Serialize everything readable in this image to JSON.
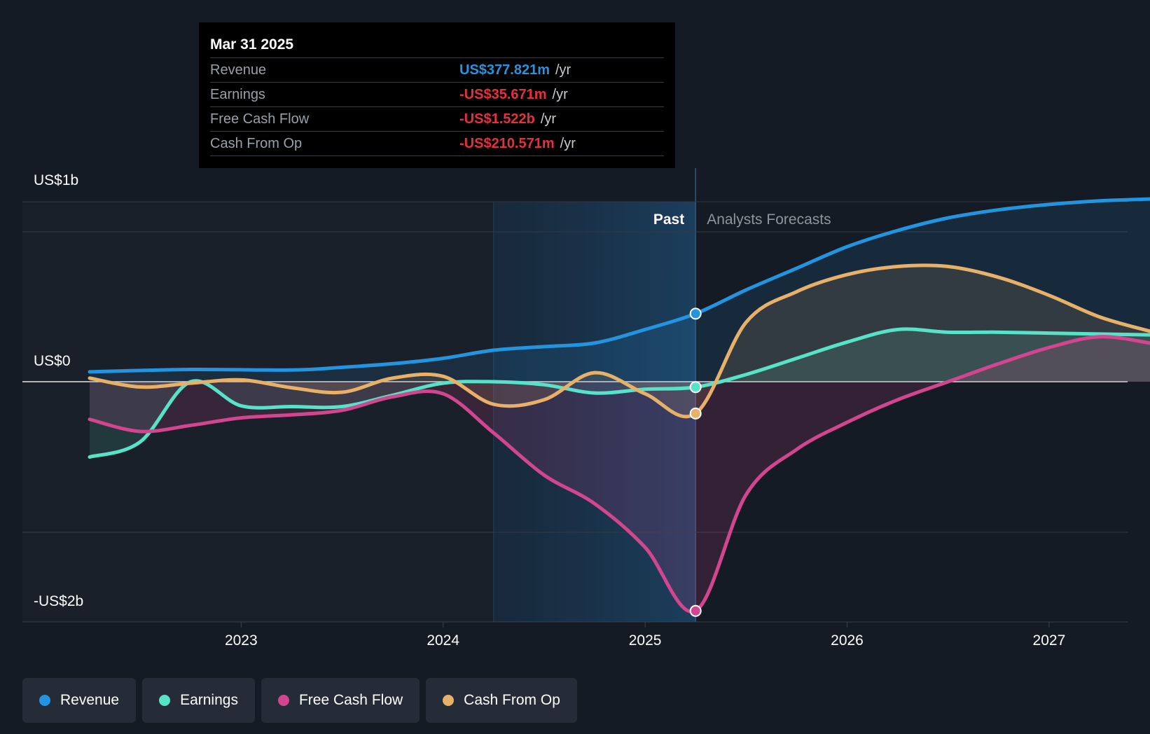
{
  "chart_data": {
    "type": "line",
    "y_axis": {
      "min": -2000,
      "max": 1000,
      "unit": "US$m",
      "tick_labels": [
        {
          "label": "US$1b",
          "value": 1000
        },
        {
          "label": "US$0",
          "value": 0
        },
        {
          "label": "-US$2b",
          "value": -2000
        }
      ]
    },
    "x_axis": {
      "min": 2022.25,
      "max": 2027.5,
      "tick_labels": [
        "2023",
        "2024",
        "2025",
        "2026",
        "2027"
      ],
      "tick_values": [
        2023,
        2024,
        2025,
        2026,
        2027
      ]
    },
    "past_label": "Past",
    "forecast_label": "Analysts Forecasts",
    "divider_x": 2025.25,
    "highlight_range": [
      2024.25,
      2025.25
    ],
    "series": [
      {
        "name": "Revenue",
        "color": "#2394df",
        "x": [
          2022.25,
          2022.75,
          2023.25,
          2023.5,
          2023.75,
          2024.0,
          2024.25,
          2024.5,
          2024.75,
          2025.0,
          2025.25,
          2025.5,
          2025.75,
          2026.0,
          2026.25,
          2026.5,
          2026.75,
          2027.0,
          2027.25,
          2027.5
        ],
        "y": [
          55,
          68,
          65,
          80,
          100,
          130,
          175,
          195,
          215,
          290,
          378,
          510,
          630,
          750,
          840,
          910,
          955,
          985,
          1005,
          1015
        ]
      },
      {
        "name": "Earnings",
        "color": "#58e2c8",
        "x": [
          2022.25,
          2022.5,
          2022.75,
          2023.0,
          2023.25,
          2023.5,
          2023.75,
          2024.0,
          2024.25,
          2024.5,
          2024.75,
          2025.0,
          2025.25,
          2025.5,
          2025.75,
          2026.0,
          2026.25,
          2026.5,
          2026.75,
          2027.0,
          2027.25,
          2027.5
        ],
        "y": [
          -500,
          -400,
          0,
          -160,
          -165,
          -165,
          -90,
          -10,
          0,
          -20,
          -75,
          -50,
          -36,
          40,
          130,
          220,
          290,
          275,
          275,
          270,
          265,
          260
        ]
      },
      {
        "name": "Free Cash Flow",
        "color": "#d1468e",
        "x": [
          2022.25,
          2022.5,
          2022.75,
          2023.0,
          2023.25,
          2023.5,
          2023.75,
          2024.0,
          2024.25,
          2024.5,
          2024.75,
          2025.0,
          2025.25,
          2025.5,
          2025.75,
          2026.0,
          2026.25,
          2026.5,
          2026.75,
          2027.0,
          2027.25,
          2027.5
        ],
        "y": [
          -250,
          -330,
          -290,
          -240,
          -220,
          -190,
          -100,
          -80,
          -340,
          -620,
          -810,
          -1100,
          -1522,
          -750,
          -450,
          -270,
          -120,
          0,
          100,
          190,
          250,
          215
        ]
      },
      {
        "name": "Cash From Op",
        "color": "#e8b16a",
        "x": [
          2022.25,
          2022.5,
          2022.75,
          2023.0,
          2023.25,
          2023.5,
          2023.75,
          2024.0,
          2024.25,
          2024.5,
          2024.75,
          2025.0,
          2025.25,
          2025.5,
          2025.75,
          2026.0,
          2026.25,
          2026.5,
          2026.75,
          2027.0,
          2027.25,
          2027.5
        ],
        "y": [
          20,
          -35,
          -10,
          10,
          -40,
          -70,
          20,
          30,
          -150,
          -120,
          50,
          -80,
          -211,
          330,
          500,
          595,
          640,
          640,
          580,
          480,
          360,
          280
        ]
      }
    ],
    "tooltip": {
      "date": "Mar 31 2025",
      "x": 2025.25,
      "rows": [
        {
          "label": "Revenue",
          "value": "US$377.821m",
          "unit": "/yr",
          "color": "#2394df"
        },
        {
          "label": "Earnings",
          "value": "-US$35.671m",
          "unit": "/yr",
          "color": "#e5303f"
        },
        {
          "label": "Free Cash Flow",
          "value": "-US$1.522b",
          "unit": "/yr",
          "color": "#e5303f"
        },
        {
          "label": "Cash From Op",
          "value": "-US$210.571m",
          "unit": "/yr",
          "color": "#e5303f"
        }
      ]
    },
    "legend": [
      {
        "label": "Revenue",
        "color": "#2394df"
      },
      {
        "label": "Earnings",
        "color": "#58e2c8"
      },
      {
        "label": "Free Cash Flow",
        "color": "#d1468e"
      },
      {
        "label": "Cash From Op",
        "color": "#e8b16a"
      }
    ]
  }
}
